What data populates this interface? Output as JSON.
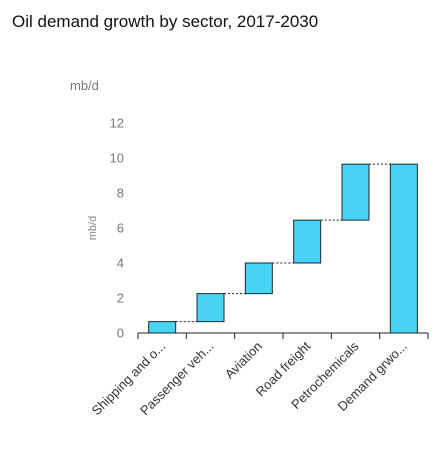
{
  "title": "Oil demand growth by sector, 2017-2030",
  "unit_label": "mb/d",
  "chart_data": {
    "type": "waterfall",
    "title": "Oil demand growth by sector, 2017-2030",
    "ylabel": "mb/d",
    "ylim": [
      0,
      12
    ],
    "yticks": [
      0,
      2,
      4,
      6,
      8,
      10,
      12
    ],
    "categories": [
      "Shipping and o...",
      "Passenger veh...",
      "Aviation",
      "Road freight",
      "Petrochemicals",
      "Demand grwo..."
    ],
    "bars": [
      {
        "category": "Shipping and o...",
        "start": 0.0,
        "end": 0.65
      },
      {
        "category": "Passenger veh...",
        "start": 0.65,
        "end": 2.25
      },
      {
        "category": "Aviation",
        "start": 2.25,
        "end": 4.0
      },
      {
        "category": "Road freight",
        "start": 4.0,
        "end": 6.45
      },
      {
        "category": "Petrochemicals",
        "start": 6.45,
        "end": 9.65
      },
      {
        "category": "Demand grwo...",
        "start": 0.0,
        "end": 9.65
      }
    ],
    "bar_color": "#47d4f6",
    "bar_stroke": "#1a2a30",
    "connector_style": "dashed",
    "grid": false
  }
}
